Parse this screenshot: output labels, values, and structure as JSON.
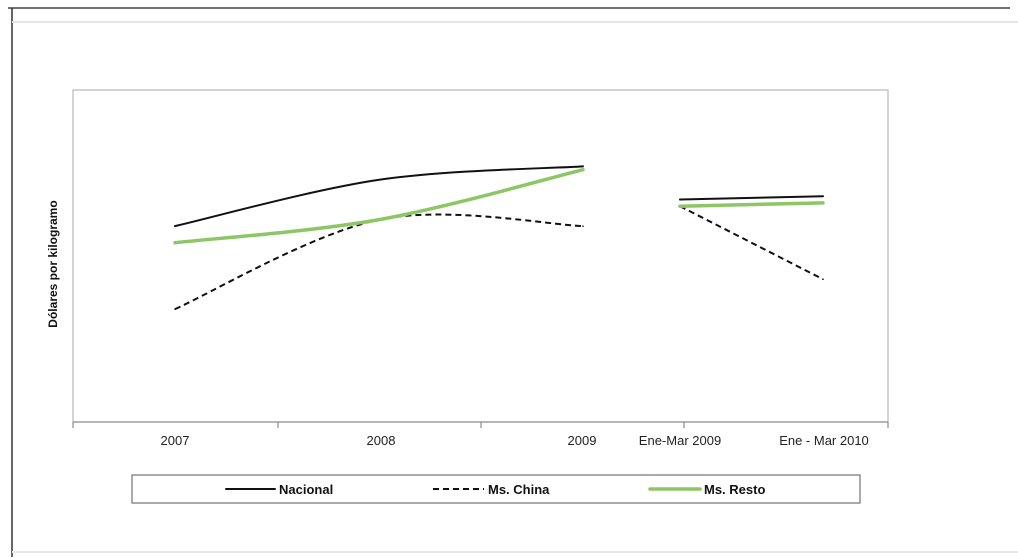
{
  "chart_data": {
    "type": "line",
    "title": "",
    "xlabel": "",
    "ylabel": "Dólares por kilogramo",
    "categories": [
      "2007",
      "2008",
      "2009",
      "Ene-Mar 2009",
      "Ene - Mar 2010"
    ],
    "ylim": [
      0,
      10
    ],
    "y_axis_visible": false,
    "grid": false,
    "legend_position": "bottom",
    "segments_break_after_index": 2,
    "series": [
      {
        "name": "Nacional",
        "color": "#111111",
        "style": "solid",
        "values": [
          5.9,
          7.3,
          7.7,
          6.7,
          6.8
        ]
      },
      {
        "name": "Ms. China",
        "color": "#111111",
        "style": "dashed",
        "values": [
          3.4,
          6.1,
          5.9,
          6.5,
          4.3
        ]
      },
      {
        "name": "Ms. Resto",
        "color": "#8cc665",
        "style": "solid-thick",
        "values": [
          5.4,
          6.1,
          7.6,
          6.5,
          6.6
        ]
      }
    ]
  }
}
